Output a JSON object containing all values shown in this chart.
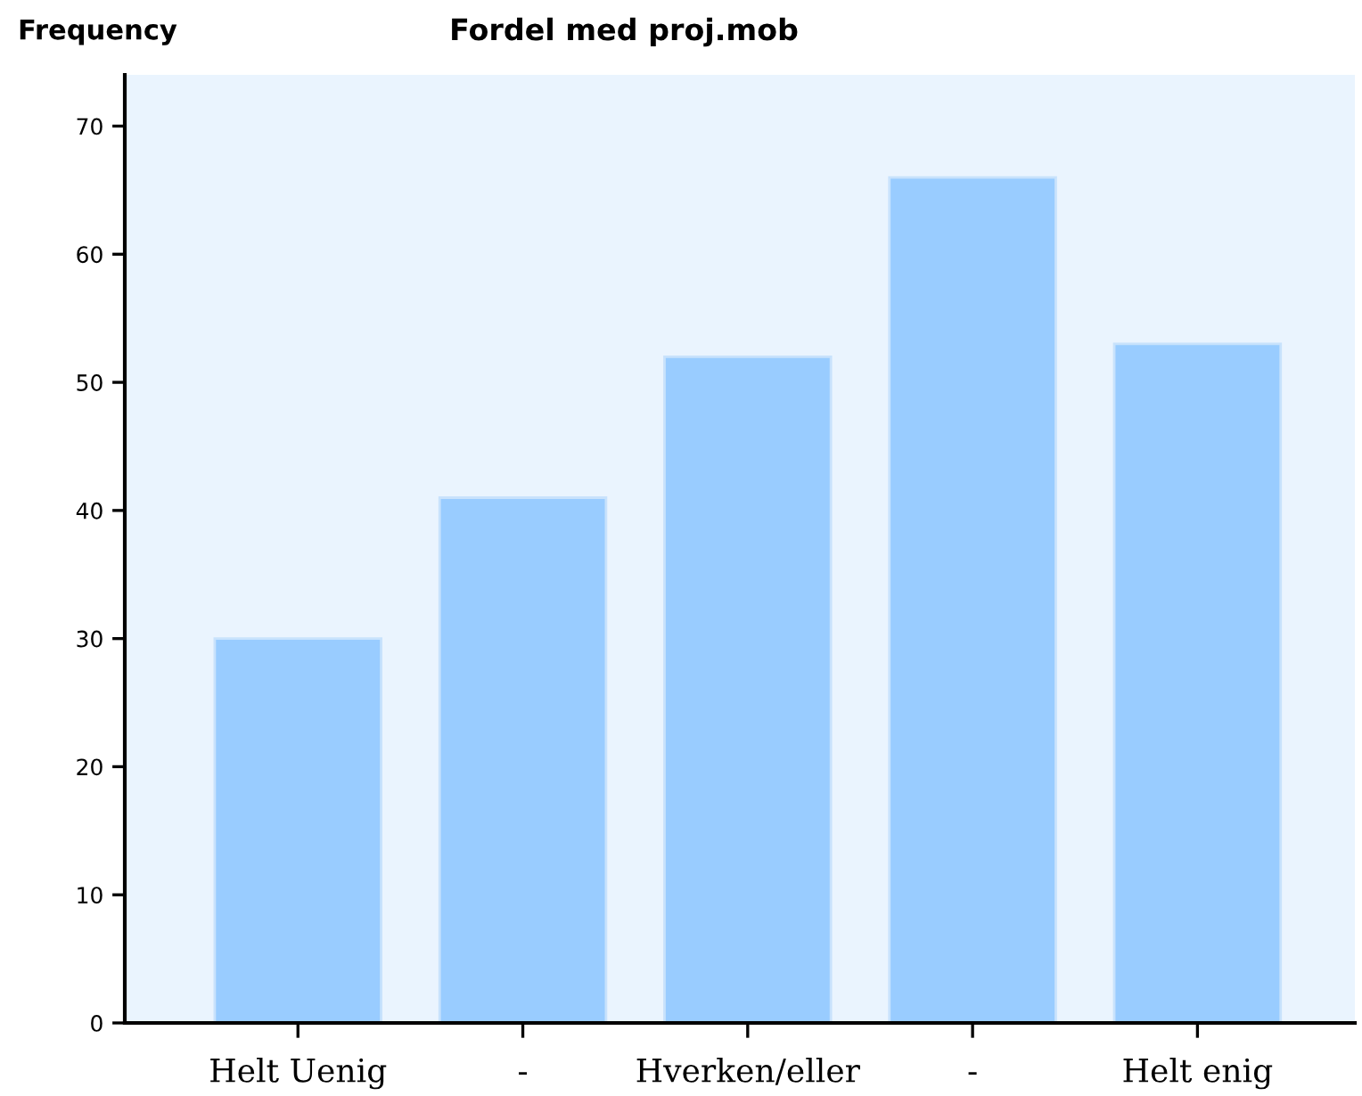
{
  "chart_data": {
    "type": "bar",
    "title": "Fordel med proj.mob",
    "ylabel": "Frequency",
    "categories": [
      "Helt Uenig",
      "-",
      "Hverken/eller",
      "-",
      "Helt enig"
    ],
    "values": [
      30,
      41,
      52,
      66,
      53
    ],
    "color": "#99ccff",
    "ylim": [
      0,
      74
    ],
    "yticks": [
      0,
      10,
      20,
      30,
      40,
      50,
      60,
      70
    ],
    "grid": false,
    "legend": false
  }
}
